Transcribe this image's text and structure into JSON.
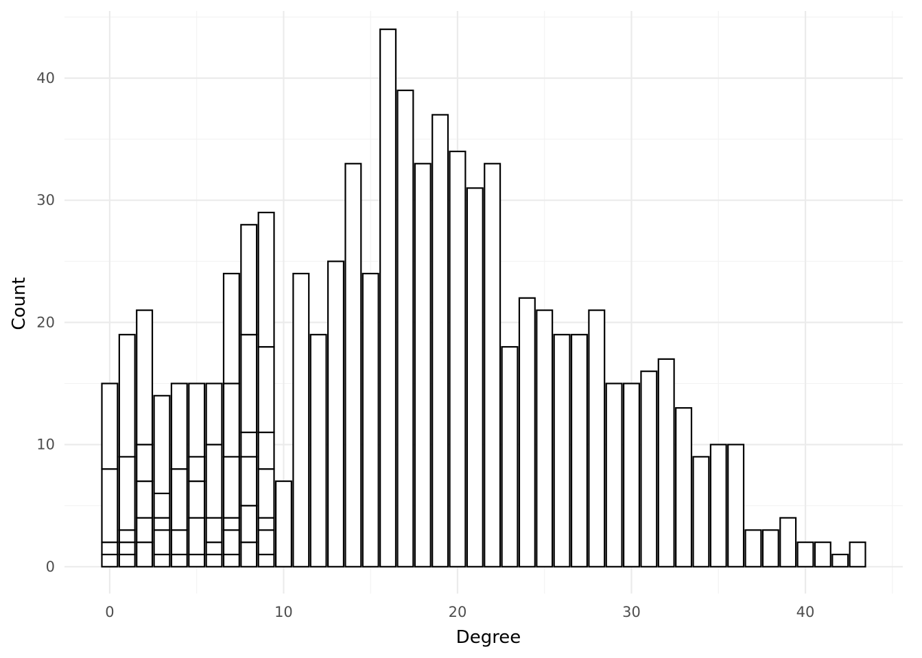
{
  "chart_data": {
    "type": "bar",
    "stacked": true,
    "xlabel": "Degree",
    "ylabel": "Count",
    "xlim": [
      -2.6,
      45.6
    ],
    "ylim": [
      -2.2,
      45.5
    ],
    "x_ticks": [
      0,
      10,
      20,
      30,
      40
    ],
    "y_ticks": [
      0,
      10,
      20,
      30,
      40
    ],
    "grid": true,
    "legend": "none",
    "bar_fill": "#ffffff",
    "bar_outline": "#000000",
    "bars": [
      {
        "x": 0,
        "segments": [
          1,
          1,
          6,
          7
        ]
      },
      {
        "x": 1,
        "segments": [
          1,
          1,
          1,
          6,
          10
        ]
      },
      {
        "x": 2,
        "segments": [
          2,
          2,
          3,
          3,
          11
        ]
      },
      {
        "x": 3,
        "segments": [
          1,
          2,
          1,
          2,
          8
        ]
      },
      {
        "x": 4,
        "segments": [
          1,
          2,
          5,
          7
        ]
      },
      {
        "x": 5,
        "segments": [
          1,
          3,
          3,
          2,
          6
        ]
      },
      {
        "x": 6,
        "segments": [
          1,
          1,
          2,
          6,
          5
        ]
      },
      {
        "x": 7,
        "segments": [
          1,
          2,
          1,
          5,
          6,
          9
        ]
      },
      {
        "x": 8,
        "segments": [
          2,
          3,
          4,
          2,
          8,
          9
        ]
      },
      {
        "x": 9,
        "segments": [
          1,
          2,
          1,
          4,
          3,
          7,
          11
        ]
      },
      {
        "x": 10,
        "segments": [
          7
        ]
      },
      {
        "x": 11,
        "segments": [
          24
        ]
      },
      {
        "x": 12,
        "segments": [
          19
        ]
      },
      {
        "x": 13,
        "segments": [
          25
        ]
      },
      {
        "x": 14,
        "segments": [
          33
        ]
      },
      {
        "x": 15,
        "segments": [
          24
        ]
      },
      {
        "x": 16,
        "segments": [
          44
        ]
      },
      {
        "x": 17,
        "segments": [
          39
        ]
      },
      {
        "x": 18,
        "segments": [
          33
        ]
      },
      {
        "x": 19,
        "segments": [
          37
        ]
      },
      {
        "x": 20,
        "segments": [
          34
        ]
      },
      {
        "x": 21,
        "segments": [
          31
        ]
      },
      {
        "x": 22,
        "segments": [
          33
        ]
      },
      {
        "x": 23,
        "segments": [
          18
        ]
      },
      {
        "x": 24,
        "segments": [
          22
        ]
      },
      {
        "x": 25,
        "segments": [
          21
        ]
      },
      {
        "x": 26,
        "segments": [
          19
        ]
      },
      {
        "x": 27,
        "segments": [
          19
        ]
      },
      {
        "x": 28,
        "segments": [
          21
        ]
      },
      {
        "x": 29,
        "segments": [
          15
        ]
      },
      {
        "x": 30,
        "segments": [
          15
        ]
      },
      {
        "x": 31,
        "segments": [
          16
        ]
      },
      {
        "x": 32,
        "segments": [
          17
        ]
      },
      {
        "x": 33,
        "segments": [
          13
        ]
      },
      {
        "x": 34,
        "segments": [
          9
        ]
      },
      {
        "x": 35,
        "segments": [
          10
        ]
      },
      {
        "x": 36,
        "segments": [
          10
        ]
      },
      {
        "x": 37,
        "segments": [
          3
        ]
      },
      {
        "x": 38,
        "segments": [
          3
        ]
      },
      {
        "x": 39,
        "segments": [
          4
        ]
      },
      {
        "x": 40,
        "segments": [
          2
        ]
      },
      {
        "x": 41,
        "segments": [
          2
        ]
      },
      {
        "x": 42,
        "segments": [
          1
        ]
      },
      {
        "x": 43,
        "segments": [
          2
        ]
      }
    ]
  }
}
